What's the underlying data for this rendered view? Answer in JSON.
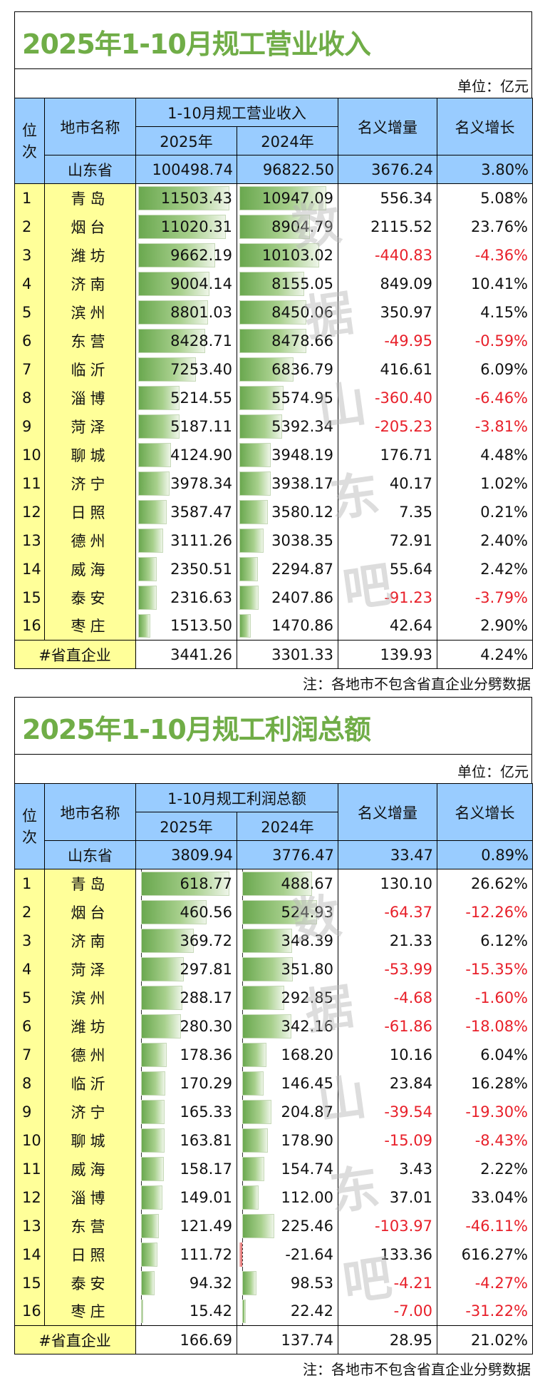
{
  "revenue": {
    "title": "2025年1-10月规工营业收入",
    "unit": "单位：亿元",
    "headers": {
      "rank": "位次",
      "city": "地市名称",
      "group": "1-10月规工营业收入",
      "y2025": "2025年",
      "y2024": "2024年",
      "change": "名义增量",
      "growth": "名义增长"
    },
    "province": {
      "name": "山东省",
      "v2025": "100498.74",
      "v2024": "96822.50",
      "change": "3676.24",
      "growth": "3.80%"
    },
    "rows": [
      {
        "rank": "1",
        "city": "青岛",
        "v2025": "11503.43",
        "v2024": "10947.09",
        "change": "556.34",
        "growth": "5.08%"
      },
      {
        "rank": "2",
        "city": "烟台",
        "v2025": "11020.31",
        "v2024": "8904.79",
        "change": "2115.52",
        "growth": "23.76%"
      },
      {
        "rank": "3",
        "city": "潍坊",
        "v2025": "9662.19",
        "v2024": "10103.02",
        "change": "-440.83",
        "growth": "-4.36%"
      },
      {
        "rank": "4",
        "city": "济南",
        "v2025": "9004.14",
        "v2024": "8155.05",
        "change": "849.09",
        "growth": "10.41%"
      },
      {
        "rank": "5",
        "city": "滨州",
        "v2025": "8801.03",
        "v2024": "8450.06",
        "change": "350.97",
        "growth": "4.15%"
      },
      {
        "rank": "6",
        "city": "东营",
        "v2025": "8428.71",
        "v2024": "8478.66",
        "change": "-49.95",
        "growth": "-0.59%"
      },
      {
        "rank": "7",
        "city": "临沂",
        "v2025": "7253.40",
        "v2024": "6836.79",
        "change": "416.61",
        "growth": "6.09%"
      },
      {
        "rank": "8",
        "city": "淄博",
        "v2025": "5214.55",
        "v2024": "5574.95",
        "change": "-360.40",
        "growth": "-6.46%"
      },
      {
        "rank": "9",
        "city": "菏泽",
        "v2025": "5187.11",
        "v2024": "5392.34",
        "change": "-205.23",
        "growth": "-3.81%"
      },
      {
        "rank": "10",
        "city": "聊城",
        "v2025": "4124.90",
        "v2024": "3948.19",
        "change": "176.71",
        "growth": "4.48%"
      },
      {
        "rank": "11",
        "city": "济宁",
        "v2025": "3978.34",
        "v2024": "3938.17",
        "change": "40.17",
        "growth": "1.02%"
      },
      {
        "rank": "12",
        "city": "日照",
        "v2025": "3587.47",
        "v2024": "3580.12",
        "change": "7.35",
        "growth": "0.21%"
      },
      {
        "rank": "13",
        "city": "德州",
        "v2025": "3111.26",
        "v2024": "3038.35",
        "change": "72.91",
        "growth": "2.40%"
      },
      {
        "rank": "14",
        "city": "威海",
        "v2025": "2350.51",
        "v2024": "2294.87",
        "change": "55.64",
        "growth": "2.42%"
      },
      {
        "rank": "15",
        "city": "泰安",
        "v2025": "2316.63",
        "v2024": "2407.86",
        "change": "-91.23",
        "growth": "-3.79%"
      },
      {
        "rank": "16",
        "city": "枣庄",
        "v2025": "1513.50",
        "v2024": "1470.86",
        "change": "42.64",
        "growth": "2.90%"
      }
    ],
    "total": {
      "label": "#省直企业",
      "v2025": "3441.26",
      "v2024": "3301.33",
      "change": "139.93",
      "growth": "4.24%"
    },
    "note": "注：各地市不包含省直企业分劈数据"
  },
  "profit": {
    "title": "2025年1-10月规工利润总额",
    "unit": "单位：亿元",
    "headers": {
      "rank": "位次",
      "city": "地市名称",
      "group": "1-10月规工利润总额",
      "y2025": "2025年",
      "y2024": "2024年",
      "change": "名义增量",
      "growth": "名义增长"
    },
    "province": {
      "name": "山东省",
      "v2025": "3809.94",
      "v2024": "3776.47",
      "change": "33.47",
      "growth": "0.89%"
    },
    "rows": [
      {
        "rank": "1",
        "city": "青岛",
        "v2025": "618.77",
        "v2024": "488.67",
        "change": "130.10",
        "growth": "26.62%"
      },
      {
        "rank": "2",
        "city": "烟台",
        "v2025": "460.56",
        "v2024": "524.93",
        "change": "-64.37",
        "growth": "-12.26%"
      },
      {
        "rank": "3",
        "city": "济南",
        "v2025": "369.72",
        "v2024": "348.39",
        "change": "21.33",
        "growth": "6.12%"
      },
      {
        "rank": "4",
        "city": "菏泽",
        "v2025": "297.81",
        "v2024": "351.80",
        "change": "-53.99",
        "growth": "-15.35%"
      },
      {
        "rank": "5",
        "city": "滨州",
        "v2025": "288.17",
        "v2024": "292.85",
        "change": "-4.68",
        "growth": "-1.60%"
      },
      {
        "rank": "6",
        "city": "潍坊",
        "v2025": "280.30",
        "v2024": "342.16",
        "change": "-61.86",
        "growth": "-18.08%"
      },
      {
        "rank": "7",
        "city": "德州",
        "v2025": "178.36",
        "v2024": "168.20",
        "change": "10.16",
        "growth": "6.04%"
      },
      {
        "rank": "8",
        "city": "临沂",
        "v2025": "170.29",
        "v2024": "146.45",
        "change": "23.84",
        "growth": "16.28%"
      },
      {
        "rank": "9",
        "city": "济宁",
        "v2025": "165.33",
        "v2024": "204.87",
        "change": "-39.54",
        "growth": "-19.30%"
      },
      {
        "rank": "10",
        "city": "聊城",
        "v2025": "163.81",
        "v2024": "178.90",
        "change": "-15.09",
        "growth": "-8.43%"
      },
      {
        "rank": "11",
        "city": "威海",
        "v2025": "158.17",
        "v2024": "154.74",
        "change": "3.43",
        "growth": "2.22%"
      },
      {
        "rank": "12",
        "city": "淄博",
        "v2025": "149.01",
        "v2024": "112.00",
        "change": "37.01",
        "growth": "33.04%"
      },
      {
        "rank": "13",
        "city": "东营",
        "v2025": "121.49",
        "v2024": "225.46",
        "change": "-103.97",
        "growth": "-46.11%"
      },
      {
        "rank": "14",
        "city": "日照",
        "v2025": "111.72",
        "v2024": "-21.64",
        "change": "133.36",
        "growth": "616.27%"
      },
      {
        "rank": "15",
        "city": "泰安",
        "v2025": "94.32",
        "v2024": "98.53",
        "change": "-4.21",
        "growth": "-4.27%"
      },
      {
        "rank": "16",
        "city": "枣庄",
        "v2025": "15.42",
        "v2024": "22.42",
        "change": "-7.00",
        "growth": "-31.22%"
      }
    ],
    "total": {
      "label": "#省直企业",
      "v2025": "166.69",
      "v2024": "137.74",
      "change": "28.95",
      "growth": "21.02%"
    },
    "note": "注：各地市不包含省直企业分劈数据"
  },
  "watermark": [
    "数",
    "据",
    "山",
    "东",
    "吧"
  ],
  "colors": {
    "title_green": "#70ad47",
    "header_blue": "#99ccff",
    "rank_yellow": "#ffff99",
    "negative_red": "#e8202a",
    "bar_green": "#6aa84f"
  }
}
